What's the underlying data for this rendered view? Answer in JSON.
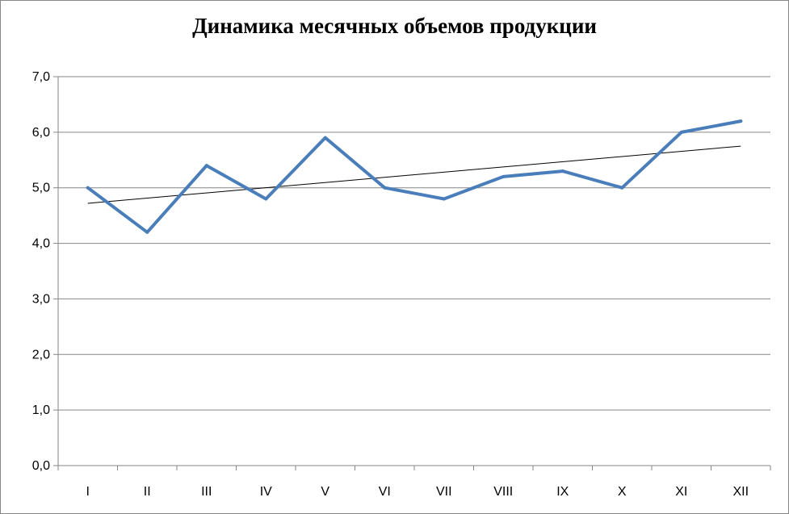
{
  "chart_data": {
    "type": "line",
    "title": "Динамика месячных объемов продукции",
    "xlabel": "",
    "ylabel": "",
    "categories": [
      "I",
      "II",
      "III",
      "IV",
      "V",
      "VI",
      "VII",
      "VIII",
      "IX",
      "X",
      "XI",
      "XII"
    ],
    "series": [
      {
        "values": [
          5.0,
          4.2,
          5.4,
          4.8,
          5.9,
          5.0,
          4.8,
          5.2,
          5.3,
          5.0,
          6.0,
          6.2
        ],
        "color": "#4a7ebb"
      }
    ],
    "trendline": {
      "type": "linear",
      "start": 4.72,
      "end": 5.75,
      "color": "#000000"
    },
    "ylim": [
      0,
      7
    ],
    "yticks": [
      "0,0",
      "1,0",
      "2,0",
      "3,0",
      "4,0",
      "5,0",
      "6,0",
      "7,0"
    ],
    "grid": "horizontal",
    "legend": "none"
  }
}
